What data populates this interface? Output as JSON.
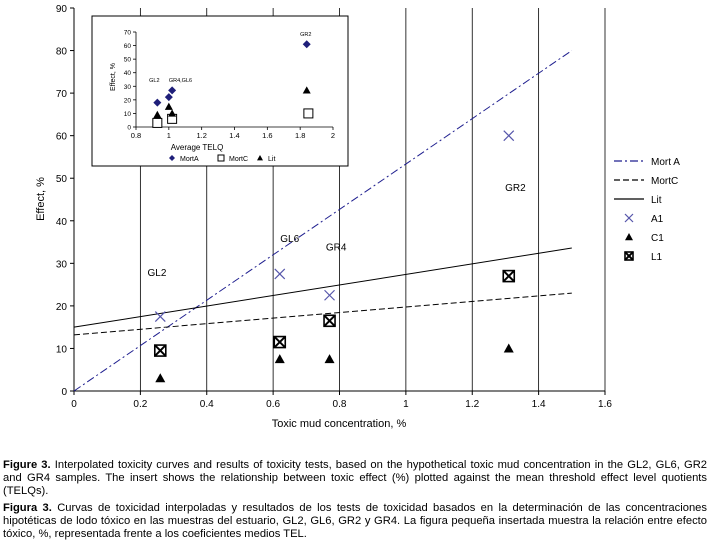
{
  "chart_data": [
    {
      "type": "scatter",
      "xlabel": "Toxic mud concentration, %",
      "ylabel": "Effect, %",
      "xlim": [
        0,
        1.6
      ],
      "ylim": [
        0,
        90
      ],
      "xticks": [
        "0",
        "0.2",
        "0.4",
        "0.6",
        "0.8",
        "1",
        "1.2",
        "1.4",
        "1.6"
      ],
      "yticks": [
        "0",
        "10",
        "20",
        "30",
        "40",
        "50",
        "60",
        "70",
        "80",
        "90"
      ],
      "grid": "vertical",
      "legend": "right",
      "lines": [
        {
          "name": "Mort A",
          "style": "dash-dot",
          "color": "#1f1f8f",
          "x": [
            0,
            1.5
          ],
          "y": [
            0,
            80
          ]
        },
        {
          "name": "MortC",
          "style": "dashed",
          "color": "#000000",
          "x": [
            0,
            1.5
          ],
          "y": [
            13.2,
            23
          ]
        },
        {
          "name": "Lit",
          "style": "solid",
          "color": "#000000",
          "x": [
            0,
            1.5
          ],
          "y": [
            15,
            33.6
          ]
        }
      ],
      "series": [
        {
          "name": "A1",
          "marker": "x",
          "color": "#5555aa",
          "x": [
            0.26,
            0.62,
            0.77,
            1.31
          ],
          "y": [
            17.5,
            27.5,
            22.5,
            60
          ]
        },
        {
          "name": "C1",
          "marker": "triangle",
          "color": "#000000",
          "x": [
            0.26,
            0.62,
            0.77,
            1.31
          ],
          "y": [
            3,
            7.5,
            7.5,
            10
          ]
        },
        {
          "name": "L1",
          "marker": "boxed-x",
          "color": "#000000",
          "x": [
            0.26,
            0.62,
            0.77,
            1.31
          ],
          "y": [
            9.5,
            11.5,
            16.5,
            27
          ]
        }
      ],
      "annotations": [
        {
          "text": "GL2",
          "x": 0.25,
          "y": 27
        },
        {
          "text": "GL6",
          "x": 0.65,
          "y": 35
        },
        {
          "text": "GR4",
          "x": 0.79,
          "y": 33
        },
        {
          "text": "GR2",
          "x": 1.33,
          "y": 47
        }
      ]
    },
    {
      "type": "scatter",
      "xlabel": "Average TELQ",
      "ylabel": "Effect, %",
      "xlim": [
        0.8,
        2.0
      ],
      "ylim": [
        0,
        70
      ],
      "xticks": [
        "0.8",
        "1",
        "1.2",
        "1.4",
        "1.6",
        "1.8",
        "2"
      ],
      "yticks": [
        "0",
        "10",
        "20",
        "30",
        "40",
        "50",
        "60",
        "70"
      ],
      "legend": "bottom",
      "series": [
        {
          "name": "MortA",
          "marker": "diamond",
          "color": "#1f1f7a",
          "x": [
            0.93,
            1.0,
            1.02,
            1.84
          ],
          "y": [
            18,
            22,
            27,
            61
          ]
        },
        {
          "name": "MortC",
          "marker": "square",
          "color": "#000000",
          "x": [
            0.93,
            1.02,
            1.85
          ],
          "y": [
            3,
            6,
            10
          ]
        },
        {
          "name": "Lit",
          "marker": "triangle",
          "color": "#000000",
          "x": [
            0.93,
            1.0,
            1.02,
            1.84
          ],
          "y": [
            9,
            15,
            10,
            27
          ]
        }
      ],
      "annotations": [
        {
          "text": "GL2",
          "x": 0.88,
          "y": 33
        },
        {
          "text": "GR4,GL6",
          "x": 1.0,
          "y": 33
        },
        {
          "text": "GR2",
          "x": 1.8,
          "y": 67
        }
      ]
    }
  ],
  "caption": {
    "en_label": "Figure 3.",
    "en_text": " Interpolated toxicity curves and results of toxicity tests, based on the hypothetical toxic mud concentration in the GL2, GL6, GR2 and GR4 samples. The insert shows the relationship between toxic effect (%) plotted against the mean threshold effect level quotients (TELQs).",
    "es_label": "Figura 3.",
    "es_text": " Curvas de toxicidad interpoladas y resultados de los tests de toxicidad basados en la determinación de las concentraciones hipotéticas de lodo tóxico en las muestras del estuario, GL2, GL6, GR2 y GR4. La figura pequeña insertada muestra la relación entre efecto tóxico, %, representada frente a los coeficientes medios TEL."
  }
}
